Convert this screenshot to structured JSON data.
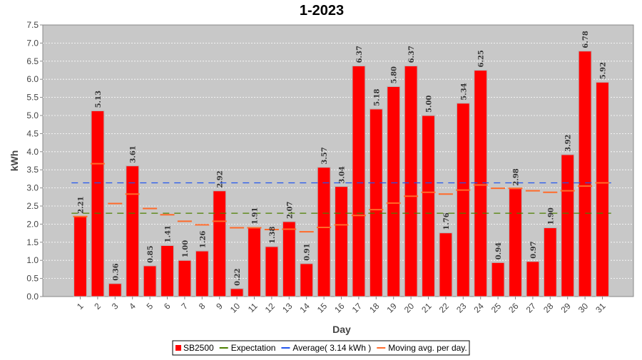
{
  "chart_data": {
    "type": "bar",
    "title": "1-2023",
    "xlabel": "Day",
    "ylabel": "kWh",
    "ylim": [
      0,
      7.5
    ],
    "y_ticks": [
      "0.0",
      "0.5",
      "1.0",
      "1.5",
      "2.0",
      "2.5",
      "3.0",
      "3.5",
      "4.0",
      "4.5",
      "5.0",
      "5.5",
      "6.0",
      "6.5",
      "7.0",
      "7.5"
    ],
    "grid": true,
    "legend_position": "bottom-center",
    "categories": [
      "1",
      "2",
      "3",
      "4",
      "5",
      "6",
      "7",
      "8",
      "9",
      "10",
      "11",
      "12",
      "13",
      "14",
      "15",
      "16",
      "17",
      "18",
      "19",
      "20",
      "21",
      "22",
      "23",
      "24",
      "25",
      "26",
      "27",
      "28",
      "29",
      "30",
      "31"
    ],
    "series": [
      {
        "name": "SB2500",
        "kind": "bar",
        "color": "#ff0000",
        "values": [
          2.21,
          5.13,
          0.36,
          3.61,
          0.85,
          1.41,
          1.0,
          1.26,
          2.92,
          0.22,
          1.91,
          1.38,
          2.07,
          0.91,
          3.57,
          3.04,
          6.37,
          5.18,
          5.8,
          6.37,
          5.0,
          1.76,
          5.34,
          6.25,
          0.94,
          2.98,
          0.97,
          1.9,
          3.92,
          6.78,
          5.92
        ],
        "labels": [
          "2.21",
          "5.13",
          "0.36",
          "3.61",
          "0.85",
          "1.41",
          "1.00",
          "1.26",
          "2.92",
          "0.22",
          "1.91",
          "1.38",
          "2.07",
          "0.91",
          "3.57",
          "3.04",
          "6.37",
          "5.18",
          "5.80",
          "6.37",
          "5.00",
          "1.76",
          "5.34",
          "6.25",
          "0.94",
          "2.98",
          "0.97",
          "1.90",
          "3.92",
          "6.78",
          "5.92"
        ]
      },
      {
        "name": "Expectation",
        "kind": "dashed-line",
        "color": "#4c7f00",
        "value": 2.3
      },
      {
        "name": "Average( 3.14 kWh )",
        "kind": "dashed-line",
        "color": "#2255ee",
        "value": 3.14
      },
      {
        "name": "Moving avg. per day.",
        "kind": "step-marks",
        "color": "#ff6a2a",
        "values": [
          2.21,
          3.67,
          2.57,
          2.83,
          2.43,
          2.26,
          2.08,
          1.98,
          2.08,
          1.9,
          1.9,
          1.85,
          1.86,
          1.79,
          1.91,
          1.98,
          2.24,
          2.4,
          2.58,
          2.77,
          2.88,
          2.83,
          2.94,
          3.08,
          2.99,
          2.99,
          2.92,
          2.88,
          2.92,
          3.05,
          3.14
        ]
      }
    ]
  }
}
